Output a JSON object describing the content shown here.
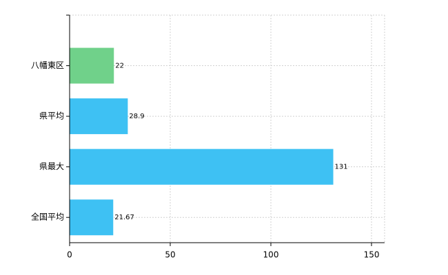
{
  "chart_data": {
    "type": "barh",
    "categories": [
      "八幡東区",
      "県平均",
      "県最大",
      "全国平均"
    ],
    "values": [
      22,
      28.9,
      131,
      21.67
    ],
    "colors": [
      "#70d18a",
      "#3ec1f3",
      "#3ec1f3",
      "#3ec1f3"
    ],
    "xlim": [
      0,
      156.5
    ],
    "xticks": [
      0,
      50,
      100,
      150
    ],
    "grid": true
  }
}
